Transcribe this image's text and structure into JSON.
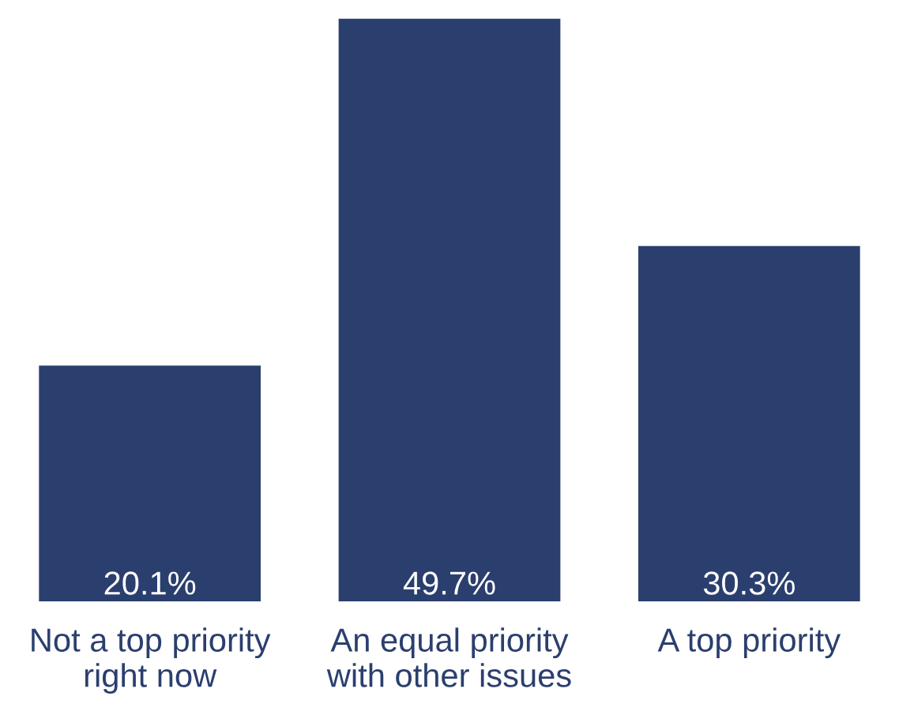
{
  "chart_data": {
    "type": "bar",
    "categories": [
      "Not a top priority\nright now",
      "An equal priority\nwith other issues",
      "A top priority"
    ],
    "values": [
      20.1,
      49.7,
      30.3
    ],
    "value_labels": [
      "20.1%",
      "49.7%",
      "30.3%"
    ],
    "color": "#2b3f6e",
    "grid": false,
    "legend": false
  }
}
